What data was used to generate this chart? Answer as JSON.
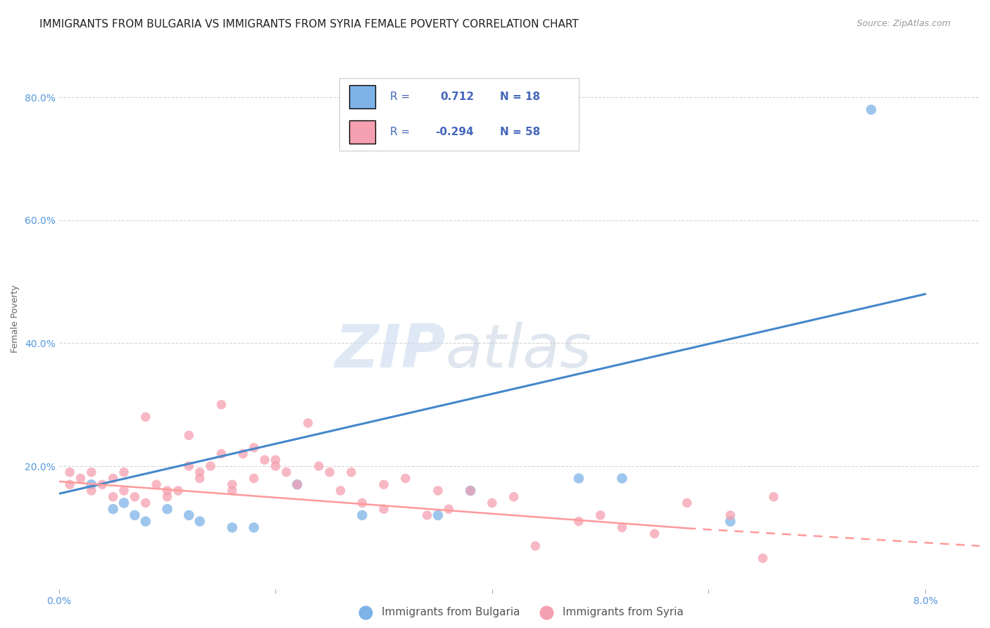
{
  "title": "IMMIGRANTS FROM BULGARIA VS IMMIGRANTS FROM SYRIA FEMALE POVERTY CORRELATION CHART",
  "source": "Source: ZipAtlas.com",
  "ylabel": "Female Poverty",
  "xlim": [
    0.0,
    0.085
  ],
  "ylim": [
    0.0,
    0.88
  ],
  "yticks": [
    0.0,
    0.2,
    0.4,
    0.6,
    0.8
  ],
  "ytick_labels": [
    "",
    "20.0%",
    "40.0%",
    "60.0%",
    "80.0%"
  ],
  "xtick_positions": [
    0.0,
    0.02,
    0.04,
    0.06,
    0.08
  ],
  "xtick_labels": [
    "0.0%",
    "",
    "",
    "",
    "8.0%"
  ],
  "bulgaria_color": "#7EB3E8",
  "syria_color": "#F5A0B0",
  "bulgaria_R": 0.712,
  "bulgaria_N": 18,
  "syria_R": -0.294,
  "syria_N": 58,
  "legend_label_bulgaria": "Immigrants from Bulgaria",
  "legend_label_syria": "Immigrants from Syria",
  "watermark_zip": "ZIP",
  "watermark_atlas": "atlas",
  "background_color": "#ffffff",
  "grid_color": "#cccccc",
  "bulgaria_scatter_x": [
    0.003,
    0.005,
    0.006,
    0.007,
    0.008,
    0.01,
    0.012,
    0.013,
    0.016,
    0.018,
    0.022,
    0.028,
    0.035,
    0.038,
    0.048,
    0.052,
    0.062,
    0.075
  ],
  "bulgaria_scatter_y": [
    0.17,
    0.13,
    0.14,
    0.12,
    0.11,
    0.13,
    0.12,
    0.11,
    0.1,
    0.1,
    0.17,
    0.12,
    0.12,
    0.16,
    0.18,
    0.18,
    0.11,
    0.78
  ],
  "syria_scatter_x": [
    0.001,
    0.001,
    0.002,
    0.003,
    0.003,
    0.004,
    0.005,
    0.005,
    0.006,
    0.006,
    0.007,
    0.008,
    0.009,
    0.01,
    0.01,
    0.011,
    0.012,
    0.013,
    0.013,
    0.014,
    0.015,
    0.016,
    0.016,
    0.017,
    0.018,
    0.019,
    0.02,
    0.021,
    0.022,
    0.023,
    0.024,
    0.025,
    0.026,
    0.027,
    0.028,
    0.03,
    0.032,
    0.034,
    0.036,
    0.038,
    0.04,
    0.042,
    0.044,
    0.048,
    0.05,
    0.052,
    0.055,
    0.058,
    0.062,
    0.015,
    0.008,
    0.012,
    0.02,
    0.03,
    0.035,
    0.065,
    0.066,
    0.018
  ],
  "syria_scatter_y": [
    0.17,
    0.19,
    0.18,
    0.16,
    0.19,
    0.17,
    0.15,
    0.18,
    0.19,
    0.16,
    0.15,
    0.14,
    0.17,
    0.16,
    0.15,
    0.16,
    0.2,
    0.19,
    0.18,
    0.2,
    0.22,
    0.16,
    0.17,
    0.22,
    0.18,
    0.21,
    0.2,
    0.19,
    0.17,
    0.27,
    0.2,
    0.19,
    0.16,
    0.19,
    0.14,
    0.13,
    0.18,
    0.12,
    0.13,
    0.16,
    0.14,
    0.15,
    0.07,
    0.11,
    0.12,
    0.1,
    0.09,
    0.14,
    0.12,
    0.3,
    0.28,
    0.25,
    0.21,
    0.17,
    0.16,
    0.05,
    0.15,
    0.23
  ],
  "bulgaria_line_x": [
    0.0,
    0.08
  ],
  "bulgaria_line_y": [
    0.155,
    0.48
  ],
  "syria_line_x0": 0.0,
  "syria_line_x1": 0.08,
  "syria_line_y0": 0.175,
  "syria_line_y1": 0.07,
  "syria_dash_split": 0.058,
  "title_fontsize": 11,
  "label_fontsize": 9,
  "tick_fontsize": 10,
  "legend_fontsize": 11
}
